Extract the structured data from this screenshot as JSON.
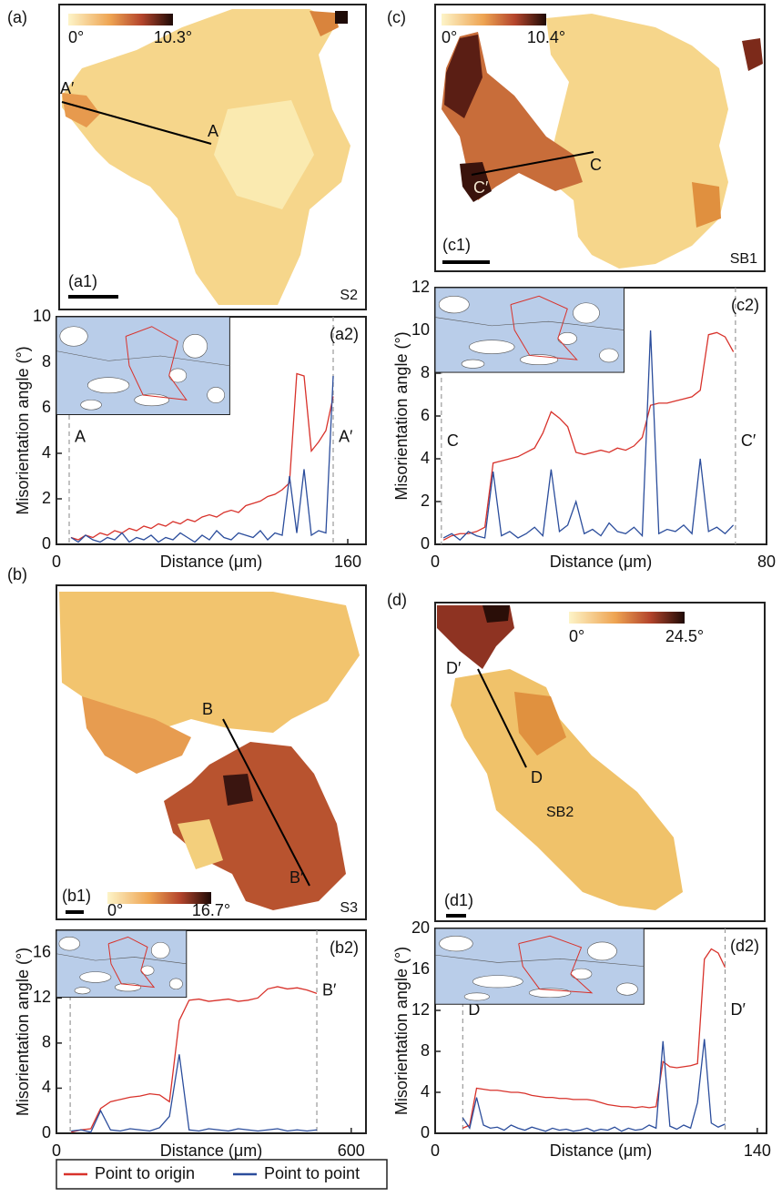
{
  "panels": [
    "(a)",
    "(b)",
    "(c)",
    "(d)"
  ],
  "maps": [
    {
      "panel": "(a1)",
      "sample": "S2",
      "colorbar_min": "0°",
      "colorbar_max": "10.3°",
      "line_start": "A′",
      "line_end": "A"
    },
    {
      "panel": "(b1)",
      "sample": "S3",
      "colorbar_min": "0°",
      "colorbar_max": "16.7°",
      "line_start": "B",
      "line_end": "B′"
    },
    {
      "panel": "(c1)",
      "sample": "SB1",
      "colorbar_min": "0°",
      "colorbar_max": "10.4°",
      "line_start": "C′",
      "line_end": "C"
    },
    {
      "panel": "(d1)",
      "sample": "SB2",
      "colorbar_min": "0°",
      "colorbar_max": "24.5°",
      "line_start": "D′",
      "line_end": "D"
    }
  ],
  "chart_data": [
    {
      "type": "line",
      "panel": "(a2)",
      "xlabel": "Distance (μm)",
      "ylabel": "Misorientation angle (°)",
      "x": [
        8,
        12,
        16,
        20,
        24,
        28,
        32,
        36,
        40,
        44,
        48,
        52,
        56,
        60,
        64,
        68,
        72,
        76,
        80,
        84,
        88,
        92,
        96,
        100,
        104,
        108,
        112,
        116,
        120,
        124,
        128,
        132,
        136,
        140,
        144,
        148,
        152
      ],
      "xlim": [
        0,
        170
      ],
      "xticks": [
        0,
        160
      ],
      "ylim": [
        0,
        10
      ],
      "yticks": [
        0,
        2,
        4,
        6,
        8,
        10
      ],
      "markers": [
        {
          "label": "A",
          "x": 7
        },
        {
          "label": "A′",
          "x": 152
        }
      ],
      "series": [
        {
          "name": "Point to origin",
          "color": "#d8322b",
          "values": [
            0.3,
            0.2,
            0.4,
            0.3,
            0.5,
            0.4,
            0.6,
            0.5,
            0.7,
            0.6,
            0.8,
            0.7,
            0.9,
            0.8,
            1.0,
            0.9,
            1.1,
            1.0,
            1.2,
            1.3,
            1.2,
            1.4,
            1.5,
            1.4,
            1.7,
            1.8,
            1.9,
            2.1,
            2.2,
            2.4,
            2.7,
            7.5,
            7.4,
            4.1,
            4.5,
            5.0,
            6.5
          ]
        },
        {
          "name": "Point to point",
          "color": "#2b4d9c",
          "values": [
            0.3,
            0.1,
            0.4,
            0.2,
            0.1,
            0.3,
            0.2,
            0.5,
            0.1,
            0.3,
            0.2,
            0.4,
            0.1,
            0.3,
            0.2,
            0.5,
            0.3,
            0.1,
            0.4,
            0.2,
            0.6,
            0.3,
            0.2,
            0.5,
            0.4,
            0.3,
            0.6,
            0.2,
            0.5,
            0.4,
            3.0,
            0.5,
            3.3,
            0.4,
            0.6,
            0.5,
            7.4
          ]
        }
      ]
    },
    {
      "type": "line",
      "panel": "(c2)",
      "xlabel": "Distance (μm)",
      "ylabel": "Misorientation angle (°)",
      "x": [
        2,
        4,
        6,
        8,
        10,
        12,
        14,
        16,
        18,
        20,
        22,
        24,
        26,
        28,
        30,
        32,
        34,
        36,
        38,
        40,
        42,
        44,
        46,
        48,
        50,
        52,
        54,
        56,
        58,
        60,
        62,
        64,
        66,
        68,
        70,
        72
      ],
      "xlim": [
        0,
        80
      ],
      "xticks": [
        0,
        80
      ],
      "ylim": [
        0,
        12
      ],
      "yticks": [
        0,
        2,
        4,
        6,
        8,
        10,
        12
      ],
      "markers": [
        {
          "label": "C",
          "x": 1.5
        },
        {
          "label": "C′",
          "x": 72.5
        }
      ],
      "series": [
        {
          "color": "#d8322b",
          "values": [
            0.2,
            0.4,
            0.5,
            0.5,
            0.6,
            0.8,
            3.8,
            3.9,
            4.0,
            4.1,
            4.3,
            4.5,
            5.2,
            6.2,
            5.9,
            5.5,
            4.3,
            4.2,
            4.3,
            4.4,
            4.3,
            4.5,
            4.4,
            4.6,
            5.0,
            6.5,
            6.6,
            6.6,
            6.7,
            6.8,
            6.9,
            7.2,
            9.8,
            9.9,
            9.7,
            9.0
          ]
        },
        {
          "color": "#2b4d9c",
          "values": [
            0.3,
            0.5,
            0.2,
            0.6,
            0.4,
            0.3,
            3.4,
            0.4,
            0.6,
            0.3,
            0.5,
            0.8,
            0.4,
            3.5,
            0.6,
            0.9,
            2.0,
            0.5,
            0.7,
            0.4,
            1.0,
            0.6,
            0.5,
            0.8,
            0.4,
            10.0,
            0.5,
            0.7,
            0.6,
            0.9,
            0.5,
            4.0,
            0.6,
            0.8,
            0.5,
            0.9
          ]
        }
      ]
    },
    {
      "type": "line",
      "panel": "(b2)",
      "xlabel": "Distance (μm)",
      "ylabel": "Misorientation angle (°)",
      "x": [
        30,
        50,
        70,
        90,
        110,
        130,
        150,
        170,
        190,
        210,
        230,
        250,
        270,
        290,
        310,
        330,
        350,
        370,
        390,
        410,
        430,
        450,
        470,
        490,
        510,
        530
      ],
      "xlim": [
        0,
        630
      ],
      "xticks": [
        0,
        600
      ],
      "ylim": [
        0,
        18
      ],
      "yticks": [
        0,
        4,
        8,
        12,
        16
      ],
      "markers": [
        {
          "label": "B",
          "x": 28
        },
        {
          "label": "B′",
          "x": 530
        }
      ],
      "series": [
        {
          "color": "#d8322b",
          "values": [
            0.1,
            0.3,
            0.4,
            2.2,
            2.8,
            3.0,
            3.2,
            3.3,
            3.5,
            3.4,
            2.8,
            10.0,
            11.8,
            11.9,
            11.7,
            11.8,
            11.9,
            11.7,
            11.8,
            12.0,
            12.8,
            13.0,
            12.8,
            12.9,
            12.7,
            12.4
          ]
        },
        {
          "color": "#2b4d9c",
          "values": [
            0.2,
            0.3,
            0.1,
            2.0,
            0.3,
            0.2,
            0.4,
            0.3,
            0.2,
            0.5,
            1.5,
            7.0,
            0.3,
            0.2,
            0.4,
            0.3,
            0.2,
            0.4,
            0.3,
            0.2,
            0.3,
            0.4,
            0.2,
            0.3,
            0.2,
            0.3
          ]
        }
      ]
    },
    {
      "type": "line",
      "panel": "(d2)",
      "xlabel": "Distance (μm)",
      "ylabel": "Misorientation angle (°)",
      "x": [
        12,
        15,
        18,
        21,
        24,
        27,
        30,
        33,
        36,
        39,
        42,
        45,
        48,
        51,
        54,
        57,
        60,
        63,
        66,
        69,
        72,
        75,
        78,
        81,
        84,
        87,
        90,
        93,
        96,
        99,
        102,
        105,
        108,
        111,
        114,
        117,
        120,
        123,
        126
      ],
      "xlim": [
        0,
        144
      ],
      "xticks": [
        0,
        140
      ],
      "ylim": [
        0,
        20
      ],
      "yticks": [
        0,
        4,
        8,
        12,
        16,
        20
      ],
      "markers": [
        {
          "label": "D",
          "x": 12
        },
        {
          "label": "D′",
          "x": 126
        }
      ],
      "series": [
        {
          "color": "#d8322b",
          "values": [
            0.5,
            0.8,
            4.4,
            4.3,
            4.2,
            4.2,
            4.1,
            4.0,
            4.0,
            3.9,
            3.7,
            3.6,
            3.5,
            3.5,
            3.4,
            3.4,
            3.3,
            3.3,
            3.3,
            3.2,
            3.0,
            2.8,
            2.7,
            2.6,
            2.6,
            2.5,
            2.6,
            2.5,
            2.6,
            7.0,
            6.5,
            6.4,
            6.5,
            6.6,
            6.8,
            17.0,
            18.0,
            17.6,
            16.2
          ]
        },
        {
          "color": "#2b4d9c",
          "values": [
            1.5,
            0.5,
            3.5,
            0.8,
            0.5,
            0.6,
            0.3,
            0.8,
            0.5,
            0.3,
            0.6,
            0.4,
            0.2,
            0.5,
            0.3,
            0.4,
            0.2,
            0.3,
            0.5,
            0.2,
            0.4,
            0.3,
            0.6,
            0.2,
            0.5,
            0.3,
            0.4,
            0.8,
            0.5,
            9.0,
            0.7,
            0.4,
            0.8,
            0.5,
            3.0,
            9.2,
            1.0,
            0.6,
            0.9
          ]
        }
      ]
    }
  ]
}
